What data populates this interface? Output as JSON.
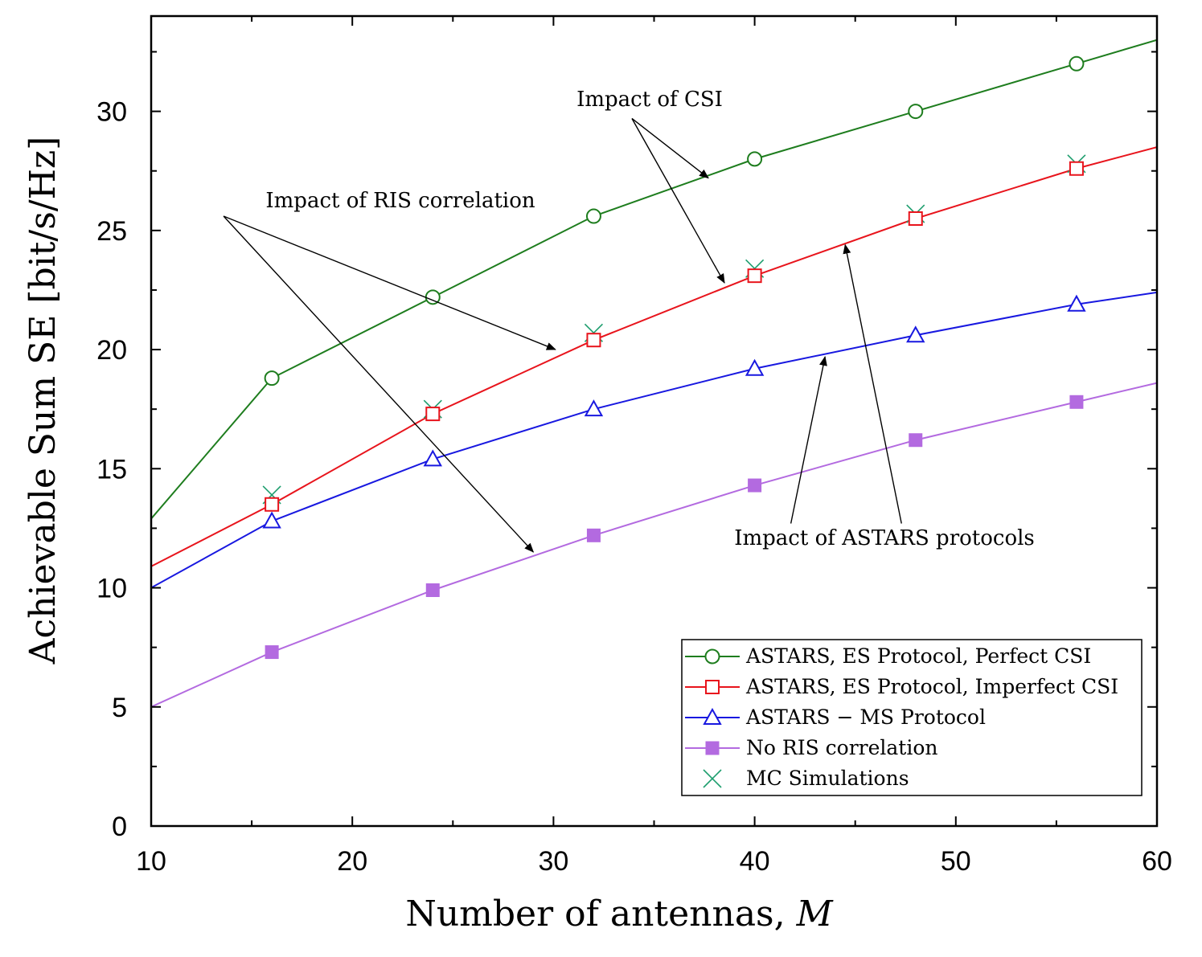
{
  "chart_data": {
    "type": "line",
    "xlabel": "Number of antennas, ",
    "xlabel_var": "M",
    "ylabel": "Achievable Sum SE [bit/s/Hz]",
    "xlim": [
      10,
      60
    ],
    "ylim": [
      0,
      34
    ],
    "xticks": [
      10,
      20,
      30,
      40,
      50,
      60
    ],
    "yticks": [
      0,
      5,
      10,
      15,
      20,
      25,
      30
    ],
    "series": [
      {
        "name": "ASTARS, ES Protocol, Perfect CSI",
        "color": "#1e7d1e",
        "marker": "circle-open",
        "line_x": [
          10,
          16,
          24,
          32,
          40,
          48,
          56,
          60
        ],
        "line_y": [
          12.9,
          18.8,
          22.2,
          25.6,
          28.0,
          30.0,
          32.0,
          33.0
        ],
        "marker_x": [
          16,
          24,
          32,
          40,
          48,
          56
        ],
        "marker_y": [
          18.8,
          22.2,
          25.6,
          28.0,
          30.0,
          32.0
        ]
      },
      {
        "name": "ASTARS, ES Protocol, Imperfect CSI",
        "color": "#e8141c",
        "marker": "square-open",
        "line_x": [
          10,
          16,
          24,
          32,
          40,
          48,
          56,
          60
        ],
        "line_y": [
          10.9,
          13.5,
          17.3,
          20.4,
          23.1,
          25.5,
          27.6,
          28.5
        ],
        "marker_x": [
          16,
          24,
          32,
          40,
          48,
          56
        ],
        "marker_y": [
          13.5,
          17.3,
          20.4,
          23.1,
          25.5,
          27.6
        ]
      },
      {
        "name": "ASTARS − MS Protocol",
        "color": "#1818e0",
        "marker": "triangle-open",
        "line_x": [
          10,
          16,
          24,
          32,
          40,
          48,
          56,
          60
        ],
        "line_y": [
          10.0,
          12.8,
          15.4,
          17.5,
          19.2,
          20.6,
          21.9,
          22.4
        ],
        "marker_x": [
          16,
          24,
          32,
          40,
          48,
          56
        ],
        "marker_y": [
          12.8,
          15.4,
          17.5,
          19.2,
          20.6,
          21.9
        ]
      },
      {
        "name": "No RIS correlation",
        "color": "#b36ae0",
        "marker": "square-filled",
        "line_x": [
          10,
          16,
          24,
          32,
          40,
          48,
          56,
          60
        ],
        "line_y": [
          5.0,
          7.3,
          9.9,
          12.2,
          14.3,
          16.2,
          17.8,
          18.6
        ],
        "marker_x": [
          16,
          24,
          32,
          40,
          48,
          56
        ],
        "marker_y": [
          7.3,
          9.9,
          12.2,
          14.3,
          16.2,
          17.8
        ]
      },
      {
        "name": "MC Simulations",
        "color": "#1e9e6e",
        "marker": "x",
        "line_x": [],
        "line_y": [],
        "marker_x": [
          16,
          24,
          32,
          40,
          48,
          56
        ],
        "marker_y": [
          13.9,
          17.5,
          20.7,
          23.4,
          25.7,
          27.8
        ]
      }
    ],
    "annotations": [
      {
        "text": "Impact of CSI",
        "arrows": [
          {
            "from": [
              33.9,
              29.7
            ],
            "to": [
              37.7,
              27.2
            ]
          },
          {
            "from": [
              33.9,
              29.7
            ],
            "to": [
              38.5,
              22.8
            ]
          }
        ]
      },
      {
        "text": "Impact of RIS correlation",
        "arrows": [
          {
            "from": [
              13.6,
              25.6
            ],
            "to": [
              30.1,
              20.0
            ]
          },
          {
            "from": [
              13.6,
              25.6
            ],
            "to": [
              29.0,
              11.5
            ]
          }
        ]
      },
      {
        "text": "Impact of ASTARS protocols",
        "arrows": [
          {
            "from": [
              41.8,
              12.7
            ],
            "to": [
              43.5,
              19.7
            ]
          },
          {
            "from": [
              47.3,
              12.7
            ],
            "to": [
              44.5,
              24.4
            ]
          }
        ]
      }
    ],
    "legend_position": "bottom-right"
  }
}
